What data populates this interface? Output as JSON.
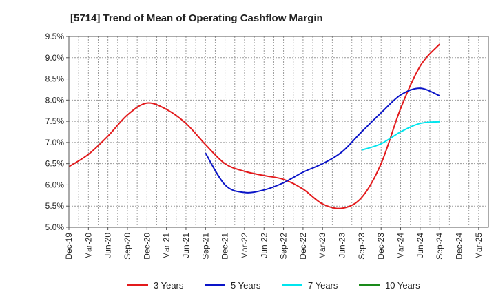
{
  "chart_data": {
    "type": "line",
    "title": "[5714]  Trend of Mean of Operating Cashflow Margin",
    "xlabel": "",
    "ylabel": "",
    "ylim": [
      5.0,
      9.5
    ],
    "y_ticks": [
      "5.0%",
      "5.5%",
      "6.0%",
      "6.5%",
      "7.0%",
      "7.5%",
      "8.0%",
      "8.5%",
      "9.0%",
      "9.5%"
    ],
    "categories": [
      "Dec-19",
      "Mar-20",
      "Jun-20",
      "Sep-20",
      "Dec-20",
      "Mar-21",
      "Jun-21",
      "Sep-21",
      "Dec-21",
      "Mar-22",
      "Jun-22",
      "Sep-22",
      "Dec-22",
      "Mar-23",
      "Jun-23",
      "Sep-23",
      "Dec-23",
      "Mar-24",
      "Jun-24",
      "Sep-24",
      "Dec-24",
      "Mar-25"
    ],
    "grid": true,
    "legend_position": "bottom",
    "series": [
      {
        "name": "3 Years",
        "color": "#e31a1c",
        "values": [
          6.43,
          6.72,
          7.15,
          7.65,
          7.93,
          7.78,
          7.45,
          6.95,
          6.5,
          6.32,
          6.22,
          6.13,
          5.9,
          5.55,
          5.45,
          5.7,
          6.5,
          7.8,
          8.8,
          9.32,
          null,
          null
        ]
      },
      {
        "name": "5 Years",
        "color": "#0a14c8",
        "values": [
          null,
          null,
          null,
          null,
          null,
          null,
          null,
          6.75,
          6.0,
          5.82,
          5.88,
          6.05,
          6.3,
          6.5,
          6.78,
          7.25,
          7.7,
          8.12,
          8.28,
          8.1,
          null,
          null
        ]
      },
      {
        "name": "7 Years",
        "color": "#00e5ee",
        "values": [
          null,
          null,
          null,
          null,
          null,
          null,
          null,
          null,
          null,
          null,
          null,
          null,
          null,
          null,
          null,
          6.82,
          6.97,
          7.25,
          7.45,
          7.49,
          null,
          null
        ]
      },
      {
        "name": "10 Years",
        "color": "#1a8a1a",
        "values": [
          null,
          null,
          null,
          null,
          null,
          null,
          null,
          null,
          null,
          null,
          null,
          null,
          null,
          null,
          null,
          null,
          null,
          null,
          null,
          null,
          null,
          null
        ]
      }
    ]
  }
}
